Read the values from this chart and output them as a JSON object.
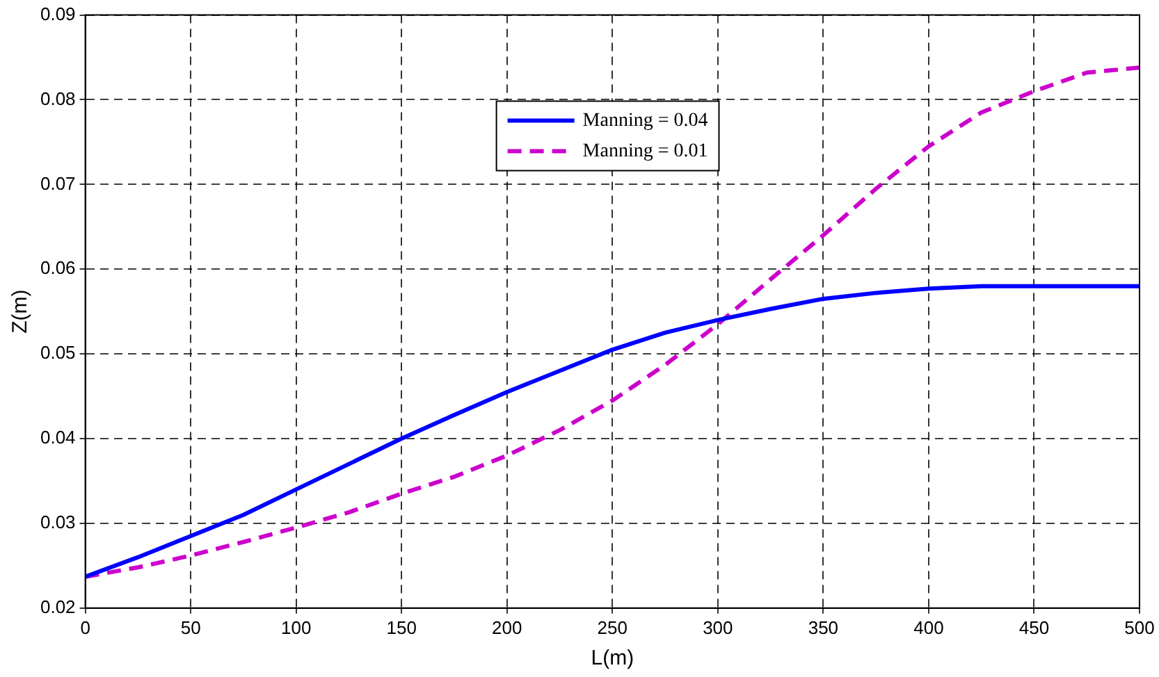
{
  "chart_data": {
    "type": "line",
    "xlabel": "L(m)",
    "ylabel": "Z(m)",
    "xlim": [
      0,
      500
    ],
    "xticks": [
      0,
      50,
      100,
      150,
      200,
      250,
      300,
      350,
      400,
      450,
      500
    ],
    "ylim": [
      0.02,
      0.09
    ],
    "yticks": [
      0.02,
      0.03,
      0.04,
      0.05,
      0.06,
      0.07,
      0.08,
      0.09
    ],
    "grid": true,
    "legend": "top",
    "marker": "none",
    "series": [
      {
        "name": "Manning = 0.04",
        "color": "#0000ff",
        "line_style": "solid",
        "x": [
          0,
          25,
          50,
          75,
          100,
          125,
          150,
          175,
          200,
          225,
          250,
          275,
          300,
          325,
          350,
          375,
          400,
          425,
          450,
          500
        ],
        "values": [
          0.0237,
          0.026,
          0.0285,
          0.031,
          0.034,
          0.037,
          0.04,
          0.0428,
          0.0455,
          0.048,
          0.0505,
          0.0525,
          0.054,
          0.0553,
          0.0565,
          0.0572,
          0.0577,
          0.058,
          0.058,
          0.058
        ]
      },
      {
        "name": "Manning = 0.01",
        "color": "#cc00cc",
        "line_style": "dashed",
        "x": [
          0,
          25,
          50,
          75,
          100,
          125,
          150,
          175,
          200,
          225,
          250,
          275,
          300,
          325,
          350,
          375,
          400,
          425,
          450,
          475,
          500
        ],
        "values": [
          0.0237,
          0.0248,
          0.0262,
          0.0278,
          0.0295,
          0.0313,
          0.0335,
          0.0355,
          0.038,
          0.041,
          0.0445,
          0.0487,
          0.0535,
          0.0588,
          0.064,
          0.0695,
          0.0745,
          0.0785,
          0.081,
          0.0832,
          0.0838
        ]
      }
    ]
  }
}
